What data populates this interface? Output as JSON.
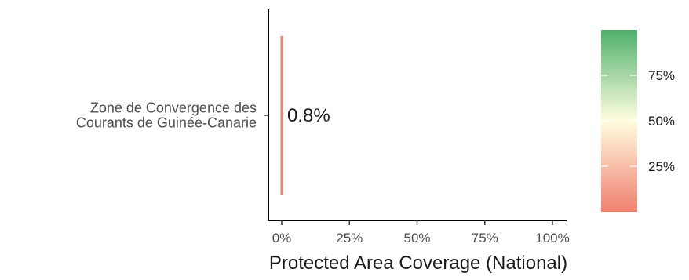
{
  "chart_data": {
    "type": "bar",
    "orientation": "horizontal",
    "categories": [
      [
        "Zone de Convergence des",
        "Courants de Guinée-Canarie"
      ]
    ],
    "values": [
      0.8
    ],
    "data_labels": [
      "0.8%"
    ],
    "xlabel": "Protected Area Coverage (National)",
    "ylabel": "",
    "xlim": [
      0,
      100
    ],
    "x_ticks": [
      0,
      25,
      50,
      75,
      100
    ],
    "x_tick_labels": [
      "0%",
      "25%",
      "50%",
      "75%",
      "100%"
    ],
    "grid": false,
    "legend": {
      "type": "colorbar",
      "placement": "right",
      "range": [
        0,
        100
      ],
      "ticks": [
        25,
        50,
        75
      ],
      "tick_labels": [
        "25%",
        "50%",
        "75%"
      ],
      "colors": [
        "#f08070",
        "#fffde0",
        "#4fb06d"
      ]
    },
    "bar_color": "#f08070",
    "colors": {
      "axis": "#000000",
      "tick_text": "#4d4d4d",
      "title_text": "#1a1a1a",
      "label_text": "#1a1a1a"
    }
  }
}
